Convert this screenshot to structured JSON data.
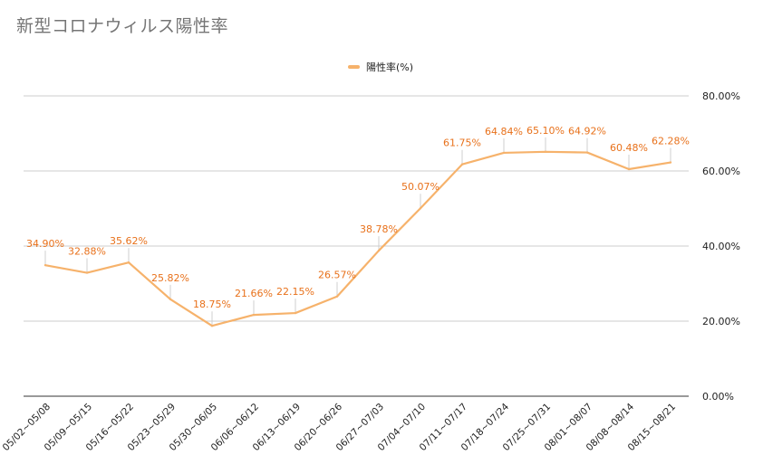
{
  "chart_data": {
    "type": "line",
    "title": "新型コロナウィルス陽性率",
    "categories": [
      "05/02~05/08",
      "05/09~05/15",
      "05/16~05/22",
      "05/23~05/29",
      "05/30~06/05",
      "06/06~06/12",
      "06/13~06/19",
      "06/20~06/26",
      "06/27~07/03",
      "07/04~07/10",
      "07/11~07/17",
      "07/18~07/24",
      "07/25~07/31",
      "08/01~08/07",
      "08/08~08/14",
      "08/15~08/21"
    ],
    "series": [
      {
        "name": "陽性率(%)",
        "color": "#f6b26b",
        "values": [
          34.9,
          32.88,
          35.62,
          25.82,
          18.75,
          21.66,
          22.15,
          26.57,
          38.78,
          50.07,
          61.75,
          64.84,
          65.1,
          64.92,
          60.48,
          62.28
        ],
        "data_labels": [
          "34.90%",
          "32.88%",
          "35.62%",
          "25.82%",
          "18.75%",
          "21.66%",
          "22.15%",
          "26.57%",
          "38.78%",
          "50.07%",
          "61.75%",
          "64.84%",
          "65.10%",
          "64.92%",
          "60.48%",
          "62.28%"
        ]
      }
    ],
    "ylim": [
      0,
      80
    ],
    "y_ticks": [
      0,
      20,
      40,
      60,
      80
    ],
    "y_tick_labels": [
      "0.00%",
      "20.00%",
      "40.00%",
      "60.00%",
      "80.00%"
    ],
    "y_axis_side": "right",
    "grid": true,
    "legend_position": "top-center",
    "label_color": "#e8711b",
    "xlabel": "",
    "ylabel": ""
  }
}
